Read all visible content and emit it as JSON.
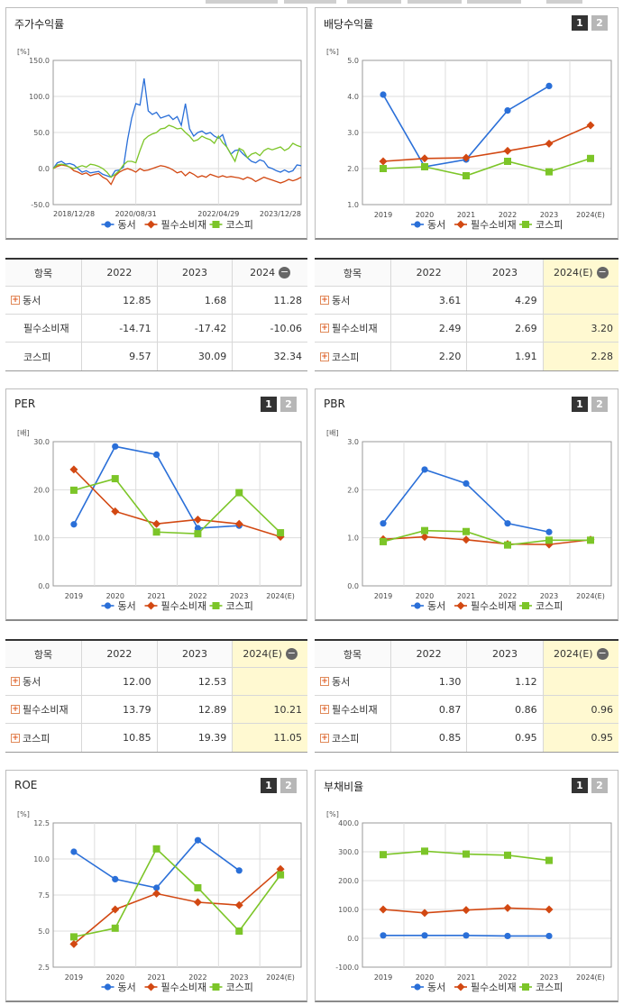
{
  "colors": {
    "s1": "#2a6fd8",
    "s2": "#d24812",
    "s3": "#7cc528",
    "grid": "#dddddd",
    "axis": "#999999",
    "highlight": "#fff9d1"
  },
  "series_names": [
    "동서",
    "필수소비재",
    "코스피"
  ],
  "panels": [
    {
      "id": "stock-return",
      "title": "주가수익률",
      "has_buttons": false,
      "chart_data": {
        "type": "line",
        "unit": "[%]",
        "ylim": [
          -50,
          150
        ],
        "yticks": [
          "150.0",
          "100.0",
          "50.0",
          "0.0",
          "-50.0"
        ],
        "xlabels": [
          "2018/12/28",
          "2020/08/31",
          "2022/04/29",
          "2023/12/28"
        ],
        "x_count": 61,
        "series": [
          {
            "name": "동서",
            "values": [
              0,
              8,
              10,
              6,
              7,
              5,
              0,
              -5,
              -3,
              -6,
              -5,
              -4,
              -8,
              -10,
              -12,
              -3,
              -2,
              2,
              40,
              70,
              90,
              88,
              125,
              80,
              75,
              78,
              70,
              72,
              74,
              68,
              72,
              60,
              90,
              55,
              45,
              50,
              52,
              48,
              50,
              45,
              42,
              47,
              30,
              20,
              25,
              26,
              20,
              15,
              10,
              8,
              12,
              10,
              2,
              0,
              -3,
              -5,
              -2,
              -5,
              -3,
              5,
              4
            ]
          },
          {
            "name": "필수소비재",
            "values": [
              0,
              3,
              5,
              4,
              2,
              -3,
              -5,
              -8,
              -6,
              -10,
              -8,
              -7,
              -12,
              -15,
              -22,
              -10,
              -5,
              -2,
              0,
              -2,
              -5,
              0,
              -3,
              -2,
              0,
              2,
              4,
              3,
              1,
              -2,
              -6,
              -4,
              -10,
              -5,
              -8,
              -12,
              -10,
              -12,
              -8,
              -10,
              -12,
              -10,
              -12,
              -11,
              -12,
              -13,
              -15,
              -12,
              -14,
              -18,
              -15,
              -12,
              -14,
              -16,
              -18,
              -20,
              -18,
              -15,
              -17,
              -15,
              -12
            ]
          },
          {
            "name": "코스피",
            "values": [
              0,
              5,
              6,
              5,
              2,
              0,
              2,
              4,
              2,
              6,
              5,
              3,
              0,
              -5,
              -12,
              -8,
              -3,
              5,
              10,
              10,
              8,
              25,
              40,
              45,
              48,
              50,
              55,
              56,
              60,
              58,
              55,
              56,
              50,
              45,
              38,
              40,
              45,
              42,
              40,
              35,
              45,
              36,
              30,
              20,
              10,
              28,
              25,
              15,
              20,
              22,
              18,
              25,
              28,
              26,
              28,
              30,
              25,
              28,
              35,
              32,
              30
            ]
          }
        ]
      }
    },
    {
      "id": "dividend-yield",
      "title": "배당수익률",
      "has_buttons": true,
      "chart_data": {
        "type": "line",
        "unit": "[%]",
        "ylim": [
          1,
          5
        ],
        "yticks": [
          "5.0",
          "4.0",
          "3.0",
          "2.0",
          "1.0"
        ],
        "categories": [
          "2019",
          "2020",
          "2021",
          "2022",
          "2023",
          "2024(E)"
        ],
        "series": [
          {
            "name": "동서",
            "values": [
              4.05,
              2.05,
              2.25,
              3.61,
              4.29,
              null
            ]
          },
          {
            "name": "필수소비재",
            "values": [
              2.2,
              2.28,
              2.3,
              2.49,
              2.69,
              3.2
            ]
          },
          {
            "name": "코스피",
            "values": [
              2.0,
              2.05,
              1.8,
              2.2,
              1.91,
              2.28
            ]
          }
        ]
      }
    },
    {
      "id": "per",
      "title": "PER",
      "has_buttons": true,
      "chart_data": {
        "type": "line",
        "unit": "[배]",
        "ylim": [
          0,
          30
        ],
        "yticks": [
          "30.0",
          "20.0",
          "10.0",
          "0.0"
        ],
        "categories": [
          "2019",
          "2020",
          "2021",
          "2022",
          "2023",
          "2024(E)"
        ],
        "series": [
          {
            "name": "동서",
            "values": [
              12.8,
              29.0,
              27.3,
              12.0,
              12.53,
              null
            ]
          },
          {
            "name": "필수소비재",
            "values": [
              24.2,
              15.5,
              12.9,
              13.79,
              12.89,
              10.21
            ]
          },
          {
            "name": "코스피",
            "values": [
              19.9,
              22.3,
              11.2,
              10.85,
              19.39,
              11.05
            ]
          }
        ]
      }
    },
    {
      "id": "pbr",
      "title": "PBR",
      "has_buttons": true,
      "chart_data": {
        "type": "line",
        "unit": "[배]",
        "ylim": [
          0,
          3
        ],
        "yticks": [
          "3.0",
          "2.0",
          "1.0",
          "0.0"
        ],
        "categories": [
          "2019",
          "2020",
          "2021",
          "2022",
          "2023",
          "2024(E)"
        ],
        "series": [
          {
            "name": "동서",
            "values": [
              1.3,
              2.42,
              2.13,
              1.3,
              1.12,
              null
            ]
          },
          {
            "name": "필수소비재",
            "values": [
              0.97,
              1.02,
              0.96,
              0.87,
              0.86,
              0.96
            ]
          },
          {
            "name": "코스피",
            "values": [
              0.92,
              1.15,
              1.13,
              0.85,
              0.95,
              0.95
            ]
          }
        ]
      }
    },
    {
      "id": "roe",
      "title": "ROE",
      "has_buttons": true,
      "chart_data": {
        "type": "line",
        "unit": "[%]",
        "ylim": [
          2.5,
          12.5
        ],
        "yticks": [
          "12.5",
          "10.0",
          "7.5",
          "5.0",
          "2.5"
        ],
        "categories": [
          "2019",
          "2020",
          "2021",
          "2022",
          "2023",
          "2024(E)"
        ],
        "series": [
          {
            "name": "동서",
            "values": [
              10.5,
              8.6,
              8.0,
              11.3,
              9.2,
              null
            ]
          },
          {
            "name": "필수소비재",
            "values": [
              4.1,
              6.5,
              7.6,
              7.0,
              6.8,
              9.3
            ]
          },
          {
            "name": "코스피",
            "values": [
              4.6,
              5.2,
              10.7,
              8.0,
              5.0,
              8.9
            ]
          }
        ]
      }
    },
    {
      "id": "debt-ratio",
      "title": "부채비율",
      "has_buttons": true,
      "chart_data": {
        "type": "line",
        "unit": "[%]",
        "ylim": [
          -100,
          400
        ],
        "yticks": [
          "400.0",
          "300.0",
          "200.0",
          "100.0",
          "0.0",
          "-100.0"
        ],
        "categories": [
          "2019",
          "2020",
          "2021",
          "2022",
          "2023",
          "2024(E)"
        ],
        "series": [
          {
            "name": "동서",
            "values": [
              10,
              10,
              10,
              8,
              8,
              null
            ]
          },
          {
            "name": "필수소비재",
            "values": [
              100,
              88,
              98,
              105,
              100,
              null
            ]
          },
          {
            "name": "코스피",
            "values": [
              290,
              302,
              292,
              288,
              270,
              null
            ]
          }
        ]
      }
    }
  ],
  "tables": [
    {
      "id": "stock-return-table",
      "headers": [
        "항목",
        "2022",
        "2023",
        "2024"
      ],
      "header_icon": "minus-icon",
      "highlight_last": false,
      "rows": [
        {
          "label": "동서",
          "plus": true,
          "values": [
            "12.85",
            "1.68",
            "11.28"
          ]
        },
        {
          "label": "필수소비재",
          "plus": false,
          "values": [
            "-14.71",
            "-17.42",
            "-10.06"
          ]
        },
        {
          "label": "코스피",
          "plus": false,
          "values": [
            "9.57",
            "30.09",
            "32.34"
          ]
        }
      ]
    },
    {
      "id": "dividend-table",
      "headers": [
        "항목",
        "2022",
        "2023",
        "2024(E)"
      ],
      "header_icon": "",
      "highlight_last": true,
      "rows": [
        {
          "label": "동서",
          "plus": true,
          "values": [
            "3.61",
            "4.29",
            ""
          ]
        },
        {
          "label": "필수소비재",
          "plus": true,
          "values": [
            "2.49",
            "2.69",
            "3.20"
          ]
        },
        {
          "label": "코스피",
          "plus": true,
          "values": [
            "2.20",
            "1.91",
            "2.28"
          ]
        }
      ]
    },
    {
      "id": "per-table",
      "headers": [
        "항목",
        "2022",
        "2023",
        "2024(E)"
      ],
      "header_icon": "minus-icon",
      "highlight_last": true,
      "rows": [
        {
          "label": "동서",
          "plus": true,
          "values": [
            "12.00",
            "12.53",
            ""
          ]
        },
        {
          "label": "필수소비재",
          "plus": true,
          "values": [
            "13.79",
            "12.89",
            "10.21"
          ]
        },
        {
          "label": "코스피",
          "plus": true,
          "values": [
            "10.85",
            "19.39",
            "11.05"
          ]
        }
      ]
    },
    {
      "id": "pbr-table",
      "headers": [
        "항목",
        "2022",
        "2023",
        "2024(E)"
      ],
      "header_icon": "",
      "highlight_last": true,
      "rows": [
        {
          "label": "동서",
          "plus": true,
          "values": [
            "1.30",
            "1.12",
            ""
          ]
        },
        {
          "label": "필수소비재",
          "plus": true,
          "values": [
            "0.87",
            "0.86",
            "0.96"
          ]
        },
        {
          "label": "코스피",
          "plus": true,
          "values": [
            "0.85",
            "0.95",
            "0.95"
          ]
        }
      ]
    }
  ]
}
